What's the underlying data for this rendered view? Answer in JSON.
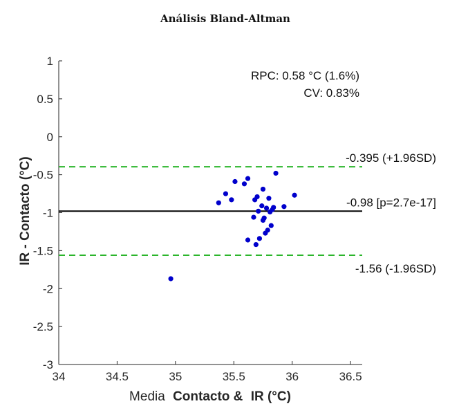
{
  "chart_data": {
    "type": "scatter",
    "title": "Análisis Bland-Altman",
    "xlabel_parts": [
      {
        "text": "Media",
        "bold": false
      },
      {
        "text": "Contacto &",
        "bold": true
      },
      {
        "text": "IR (°C)",
        "bold": true
      }
    ],
    "ylabel": "IR -  Contacto (°C)",
    "xlim": [
      34,
      36.6
    ],
    "ylim": [
      -3,
      1
    ],
    "xticks": [
      34,
      34.5,
      35,
      35.5,
      36,
      36.5
    ],
    "yticks": [
      1,
      0.5,
      0,
      -0.5,
      -1,
      -1.5,
      -2,
      -2.5,
      -3
    ],
    "xtick_labels": [
      "34",
      "34.5",
      "35",
      "35.5",
      "36",
      "36.5"
    ],
    "ytick_labels": [
      "1",
      "0.5",
      "0",
      "-0.5",
      "-1",
      "-1.5",
      "-2",
      "-2.5",
      "-3"
    ],
    "stats": [
      "RPC: 0.58 °C (1.6%)",
      "CV: 0.83%"
    ],
    "lines": [
      {
        "y": -0.395,
        "label": "-0.395 (+1.96SD)",
        "style": "dashed",
        "color": "#2bb52b"
      },
      {
        "y": -0.98,
        "label": "-0.98 [p=2.7e-17]",
        "style": "solid",
        "color": "#000000"
      },
      {
        "y": -1.56,
        "label": "-1.56 (-1.96SD)",
        "style": "dashed",
        "color": "#2bb52b"
      }
    ],
    "point_color": "#0000cc",
    "points": [
      {
        "x": 34.96,
        "y": -1.87
      },
      {
        "x": 35.37,
        "y": -0.87
      },
      {
        "x": 35.43,
        "y": -0.75
      },
      {
        "x": 35.48,
        "y": -0.83
      },
      {
        "x": 35.51,
        "y": -0.59
      },
      {
        "x": 35.59,
        "y": -0.62
      },
      {
        "x": 35.62,
        "y": -0.55
      },
      {
        "x": 35.62,
        "y": -1.36
      },
      {
        "x": 35.67,
        "y": -1.06
      },
      {
        "x": 35.68,
        "y": -0.83
      },
      {
        "x": 35.69,
        "y": -1.42
      },
      {
        "x": 35.7,
        "y": -0.79
      },
      {
        "x": 35.71,
        "y": -0.98
      },
      {
        "x": 35.72,
        "y": -1.34
      },
      {
        "x": 35.74,
        "y": -0.91
      },
      {
        "x": 35.75,
        "y": -0.69
      },
      {
        "x": 35.75,
        "y": -1.1
      },
      {
        "x": 35.76,
        "y": -1.07
      },
      {
        "x": 35.77,
        "y": -1.27
      },
      {
        "x": 35.78,
        "y": -0.94
      },
      {
        "x": 35.79,
        "y": -1.23
      },
      {
        "x": 35.8,
        "y": -0.81
      },
      {
        "x": 35.81,
        "y": -0.99
      },
      {
        "x": 35.82,
        "y": -1.17
      },
      {
        "x": 35.83,
        "y": -0.96
      },
      {
        "x": 35.84,
        "y": -0.93
      },
      {
        "x": 35.86,
        "y": -0.48
      },
      {
        "x": 35.93,
        "y": -0.92
      },
      {
        "x": 36.02,
        "y": -0.77
      }
    ]
  }
}
